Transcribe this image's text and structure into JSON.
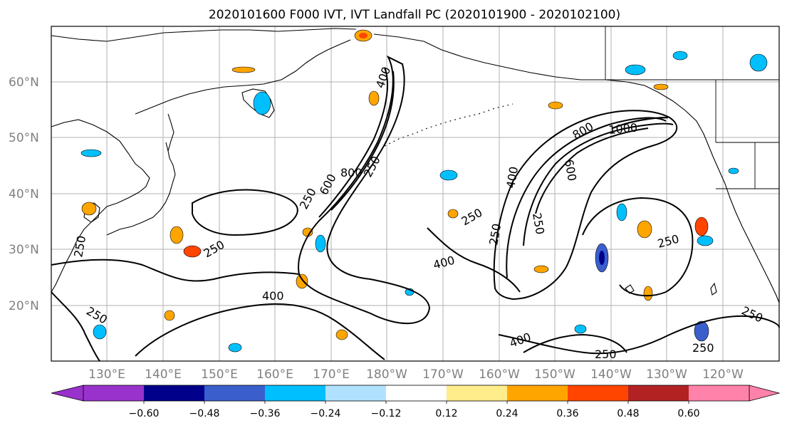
{
  "title": "2020101600 F000 IVT, IVT Landfall PC (2020101900 - 2020102100)",
  "lat_labels": [
    "60°N",
    "50°N",
    "40°N",
    "30°N",
    "20°N"
  ],
  "lon_labels": [
    "130°E",
    "140°E",
    "150°E",
    "160°E",
    "170°E",
    "180°W",
    "170°W",
    "160°W",
    "150°W",
    "140°W",
    "130°W",
    "120°W"
  ],
  "contour_labels": [
    "250",
    "400",
    "600",
    "800",
    "1000"
  ],
  "colorbar": {
    "colors": [
      "#9932cc",
      "#00008b",
      "#3a5fcd",
      "#00bfff",
      "#b0e2ff",
      "#ffffff",
      "#ffec8b",
      "#ffa500",
      "#ff4500",
      "#b22222",
      "#ff82ab"
    ],
    "tick_labels": [
      "−0.60",
      "−0.48",
      "−0.36",
      "−0.24",
      "−0.12",
      "0.12",
      "0.24",
      "0.36",
      "0.48",
      "0.60"
    ]
  },
  "contour_annotations": [
    {
      "text": "400"
    },
    {
      "text": "250"
    },
    {
      "text": "600"
    },
    {
      "text": "800"
    },
    {
      "text": "250"
    },
    {
      "text": "250"
    },
    {
      "text": "250"
    },
    {
      "text": "250"
    },
    {
      "text": "400"
    },
    {
      "text": "400"
    },
    {
      "text": "250"
    },
    {
      "text": "250"
    },
    {
      "text": "250"
    },
    {
      "text": "400"
    },
    {
      "text": "800"
    },
    {
      "text": "1000"
    },
    {
      "text": "400"
    },
    {
      "text": "600"
    },
    {
      "text": "250"
    },
    {
      "text": "250"
    },
    {
      "text": "250"
    },
    {
      "text": "250"
    }
  ]
}
